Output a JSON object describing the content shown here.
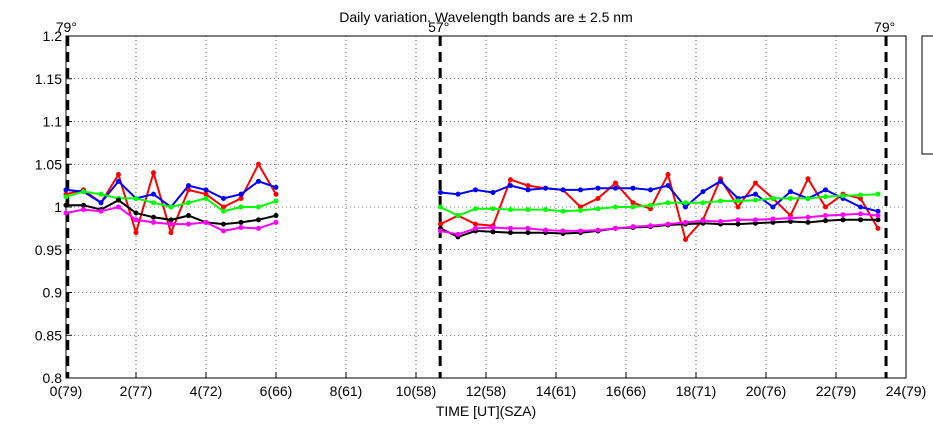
{
  "chart_data": {
    "type": "line",
    "title": "Daily variation. Wavelength bands are ± 2.5 nm",
    "x_label": "TIME [UT](SZA)",
    "xlim": [
      0,
      24
    ],
    "ylim": [
      0.8,
      1.2
    ],
    "xticks": [
      {
        "value": 0,
        "label": "0(79)"
      },
      {
        "value": 2,
        "label": "2(77)"
      },
      {
        "value": 4,
        "label": "4(72)"
      },
      {
        "value": 6,
        "label": "6(66)"
      },
      {
        "value": 8,
        "label": "8(61)"
      },
      {
        "value": 10,
        "label": "10(58)"
      },
      {
        "value": 12,
        "label": "12(58)"
      },
      {
        "value": 14,
        "label": "14(61)"
      },
      {
        "value": 16,
        "label": "16(66)"
      },
      {
        "value": 18,
        "label": "18(71)"
      },
      {
        "value": 20,
        "label": "20(76)"
      },
      {
        "value": 22,
        "label": "22(79)"
      },
      {
        "value": 24,
        "label": "24(79)"
      }
    ],
    "yticks": [
      0.8,
      0.85,
      0.9,
      0.95,
      1,
      1.05,
      1.1,
      1.15,
      1.2
    ],
    "grid": true,
    "vlines": [
      {
        "x": 0.05,
        "label": "79°"
      },
      {
        "x": 10.69,
        "label": "57°"
      },
      {
        "x": 23.43,
        "label": "79°"
      }
    ],
    "x": [
      0,
      0.5,
      1,
      1.5,
      2,
      2.5,
      3,
      3.5,
      4,
      4.5,
      5,
      5.5,
      6,
      8.5,
      10.7,
      11.2,
      11.7,
      12.2,
      12.7,
      13.2,
      13.7,
      14.2,
      14.7,
      15.2,
      15.7,
      16.2,
      16.7,
      17.2,
      17.7,
      18.2,
      18.7,
      19.2,
      19.7,
      20.2,
      20.7,
      21.2,
      21.7,
      22.2,
      22.7,
      23.2
    ],
    "series": [
      {
        "color": "#ff0000",
        "values": [
          1.015,
          1.02,
          1.005,
          1.038,
          0.97,
          1.04,
          0.97,
          1.02,
          1.015,
          1.0,
          1.01,
          1.05,
          1.015,
          null,
          0.98,
          0.99,
          0.98,
          0.978,
          1.032,
          1.025,
          1.022,
          1.02,
          1.0,
          1.01,
          1.028,
          1.005,
          0.998,
          1.038,
          0.962,
          0.985,
          1.033,
          1.0,
          1.028,
          1.01,
          0.99,
          1.033,
          1.0,
          1.015,
          1.01,
          0.975
        ]
      },
      {
        "color": "#0000ff",
        "values": [
          1.02,
          1.018,
          1.005,
          1.03,
          1.01,
          1.015,
          1.0,
          1.025,
          1.02,
          1.01,
          1.015,
          1.03,
          1.023,
          null,
          1.017,
          1.015,
          1.02,
          1.017,
          1.025,
          1.02,
          1.022,
          1.02,
          1.02,
          1.022,
          1.022,
          1.022,
          1.02,
          1.025,
          1.0,
          1.018,
          1.03,
          1.01,
          1.015,
          1.0,
          1.018,
          1.01,
          1.02,
          1.01,
          1.0,
          0.995
        ]
      },
      {
        "color": "#00ff00",
        "values": [
          1.012,
          1.018,
          1.015,
          1.01,
          1.01,
          1.005,
          1.0,
          1.005,
          1.01,
          0.995,
          1.0,
          1.0,
          1.007,
          null,
          1.0,
          0.99,
          0.998,
          0.998,
          0.997,
          0.997,
          0.997,
          0.995,
          0.996,
          0.998,
          1.0,
          1.0,
          1.002,
          1.005,
          1.005,
          1.005,
          1.007,
          1.007,
          1.008,
          1.01,
          1.01,
          1.01,
          1.012,
          1.013,
          1.014,
          1.015
        ]
      },
      {
        "color": "#000000",
        "values": [
          1.002,
          1.002,
          0.997,
          1.008,
          0.993,
          0.988,
          0.985,
          0.99,
          0.982,
          0.98,
          0.982,
          0.985,
          0.99,
          null,
          0.975,
          0.965,
          0.972,
          0.971,
          0.97,
          0.97,
          0.97,
          0.969,
          0.97,
          0.972,
          0.975,
          0.976,
          0.977,
          0.979,
          0.98,
          0.981,
          0.98,
          0.98,
          0.981,
          0.982,
          0.983,
          0.982,
          0.984,
          0.985,
          0.985,
          0.985
        ]
      },
      {
        "color": "#ff00ff",
        "values": [
          0.993,
          0.997,
          0.995,
          1.0,
          0.985,
          0.982,
          0.98,
          0.98,
          0.982,
          0.972,
          0.976,
          0.975,
          0.982,
          null,
          0.972,
          0.968,
          0.975,
          0.976,
          0.975,
          0.975,
          0.973,
          0.972,
          0.972,
          0.973,
          0.975,
          0.977,
          0.978,
          0.98,
          0.982,
          0.984,
          0.983,
          0.985,
          0.985,
          0.986,
          0.987,
          0.988,
          0.99,
          0.991,
          0.992,
          0.99
        ]
      }
    ]
  }
}
